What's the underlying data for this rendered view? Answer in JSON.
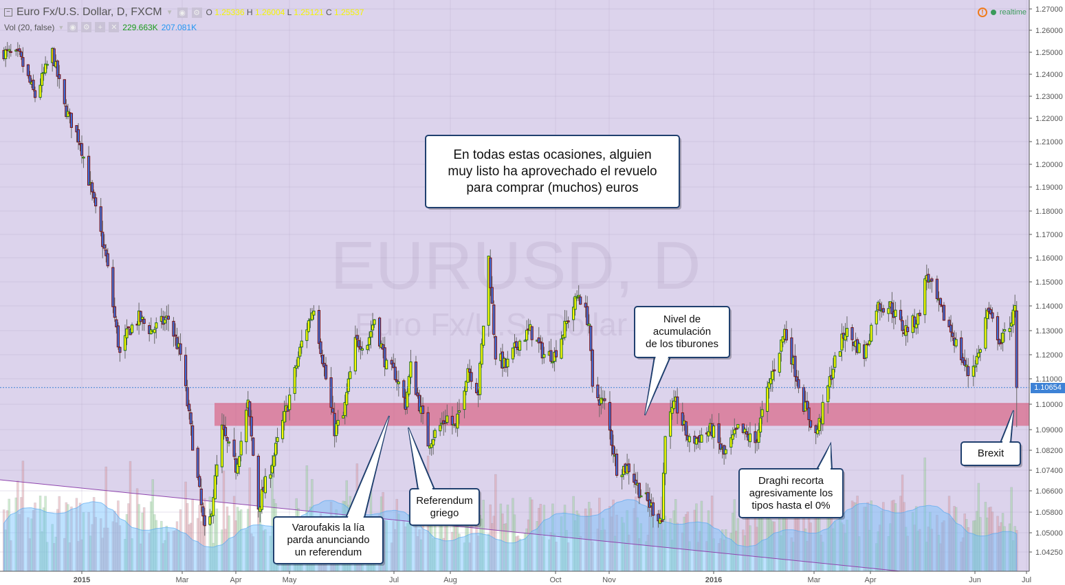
{
  "header": {
    "symbol_title": "Euro Fx/U.S. Dollar, D, FXCM",
    "ohlc": {
      "o_label": "O",
      "o": "1.25336",
      "h_label": "H",
      "h": "1.26004",
      "l_label": "L",
      "l": "1.25121",
      "c_label": "C",
      "c": "1.25537"
    },
    "volume_indicator": "Vol (20, false)",
    "volume_value": "229.663K",
    "volume_ma_value": "207.081K",
    "realtime_label": "realtime"
  },
  "watermark": {
    "line1": "EURUSD, D",
    "line2": "Euro Fx/U.S. Dollar"
  },
  "price_axis": {
    "ticks": [
      "1.27000",
      "1.26000",
      "1.25000",
      "1.24000",
      "1.23000",
      "1.22000",
      "1.21000",
      "1.20000",
      "1.19000",
      "1.18000",
      "1.17000",
      "1.16000",
      "1.15000",
      "1.14000",
      "1.13000",
      "1.12000",
      "1.11000",
      "1.10000",
      "1.09000",
      "1.08200",
      "1.07400",
      "1.06600",
      "1.05800",
      "1.05000",
      "1.04250"
    ],
    "last_price": "1.10654"
  },
  "time_axis": {
    "labels": [
      "2015",
      "Mar",
      "Apr",
      "May",
      "Jul",
      "Aug",
      "Oct",
      "Nov",
      "2016",
      "Mar",
      "Apr",
      "Jun",
      "Jul"
    ]
  },
  "zone": {
    "low": 1.0915,
    "high": 1.1005,
    "color": "#d9476a"
  },
  "colors": {
    "up_fill": "#ffff00",
    "up_border": "#1e6b1e",
    "down_fill": "#3d6fd8",
    "down_border": "#7a1010",
    "background": "#dcd3ec",
    "callout_border": "#1f3f6e",
    "trendline": "#8e44ad"
  },
  "candles": {
    "keypoints": [
      [
        "2014-11-17",
        1.25
      ],
      [
        "2014-11-26",
        1.248
      ],
      [
        "2014-12-05",
        1.23
      ],
      [
        "2014-12-15",
        1.25
      ],
      [
        "2014-12-22",
        1.225
      ],
      [
        "2014-12-31",
        1.21
      ],
      [
        "2015-01-05",
        1.193
      ],
      [
        "2015-01-15",
        1.16
      ],
      [
        "2015-01-23",
        1.12
      ],
      [
        "2015-01-28",
        1.13
      ],
      [
        "2015-02-03",
        1.135
      ],
      [
        "2015-02-10",
        1.13
      ],
      [
        "2015-02-20",
        1.135
      ],
      [
        "2015-02-27",
        1.12
      ],
      [
        "2015-03-06",
        1.085
      ],
      [
        "2015-03-13",
        1.05
      ],
      [
        "2015-03-16",
        1.055
      ],
      [
        "2015-03-23",
        1.09
      ],
      [
        "2015-03-31",
        1.075
      ],
      [
        "2015-04-07",
        1.1
      ],
      [
        "2015-04-13",
        1.06
      ],
      [
        "2015-04-20",
        1.075
      ],
      [
        "2015-04-30",
        1.1
      ],
      [
        "2015-05-08",
        1.125
      ],
      [
        "2015-05-15",
        1.14
      ],
      [
        "2015-05-22",
        1.11
      ],
      [
        "2015-05-27",
        1.09
      ],
      [
        "2015-06-01",
        1.095
      ],
      [
        "2015-06-08",
        1.125
      ],
      [
        "2015-06-15",
        1.125
      ],
      [
        "2015-06-19",
        1.135
      ],
      [
        "2015-06-26",
        1.115
      ],
      [
        "2015-07-01",
        1.112
      ],
      [
        "2015-07-07",
        1.1
      ],
      [
        "2015-07-10",
        1.115
      ],
      [
        "2015-07-20",
        1.085
      ],
      [
        "2015-07-31",
        1.095
      ],
      [
        "2015-08-05",
        1.09
      ],
      [
        "2015-08-12",
        1.115
      ],
      [
        "2015-08-18",
        1.105
      ],
      [
        "2015-08-24",
        1.16
      ],
      [
        "2015-08-28",
        1.12
      ],
      [
        "2015-09-03",
        1.115
      ],
      [
        "2015-09-10",
        1.125
      ],
      [
        "2015-09-17",
        1.13
      ],
      [
        "2015-09-25",
        1.12
      ],
      [
        "2015-10-01",
        1.12
      ],
      [
        "2015-10-09",
        1.135
      ],
      [
        "2015-10-15",
        1.145
      ],
      [
        "2015-10-21",
        1.133
      ],
      [
        "2015-10-23",
        1.105
      ],
      [
        "2015-10-30",
        1.1
      ],
      [
        "2015-11-06",
        1.075
      ],
      [
        "2015-11-13",
        1.075
      ],
      [
        "2015-11-20",
        1.065
      ],
      [
        "2015-12-02",
        1.055
      ],
      [
        "2015-12-04",
        1.09
      ],
      [
        "2015-12-10",
        1.1
      ],
      [
        "2015-12-18",
        1.085
      ],
      [
        "2015-12-31",
        1.09
      ],
      [
        "2016-01-07",
        1.08
      ],
      [
        "2016-01-15",
        1.09
      ],
      [
        "2016-01-25",
        1.085
      ],
      [
        "2016-02-03",
        1.11
      ],
      [
        "2016-02-11",
        1.13
      ],
      [
        "2016-02-22",
        1.1
      ],
      [
        "2016-02-29",
        1.088
      ],
      [
        "2016-03-03",
        1.095
      ],
      [
        "2016-03-10",
        1.115
      ],
      [
        "2016-03-17",
        1.13
      ],
      [
        "2016-03-28",
        1.12
      ],
      [
        "2016-04-04",
        1.14
      ],
      [
        "2016-04-12",
        1.14
      ],
      [
        "2016-04-20",
        1.13
      ],
      [
        "2016-04-28",
        1.135
      ],
      [
        "2016-05-03",
        1.153
      ],
      [
        "2016-05-10",
        1.14
      ],
      [
        "2016-05-17",
        1.13
      ],
      [
        "2016-05-27",
        1.112
      ],
      [
        "2016-06-02",
        1.12
      ],
      [
        "2016-06-07",
        1.138
      ],
      [
        "2016-06-15",
        1.125
      ],
      [
        "2016-06-23",
        1.138
      ]
    ],
    "last": {
      "date": "2016-06-24",
      "open": 1.138,
      "high": 1.142,
      "low": 1.091,
      "close": 1.10654
    }
  },
  "callouts": {
    "main": [
      "En todas estas ocasiones, alguien",
      "muy listo ha aprovechado el revuelo",
      "para comprar (muchos) euros"
    ],
    "tiburones": [
      "Nivel de",
      "acumulación",
      "de los tiburones"
    ],
    "varoufakis": [
      "Varoufakis la lía",
      "parda anunciando",
      "un referendum"
    ],
    "referendum": [
      "Referendum",
      "griego"
    ],
    "draghi": [
      "Draghi recorta",
      "agresivamente los",
      "tipos hasta el 0%"
    ],
    "brexit": [
      "Brexit"
    ]
  }
}
